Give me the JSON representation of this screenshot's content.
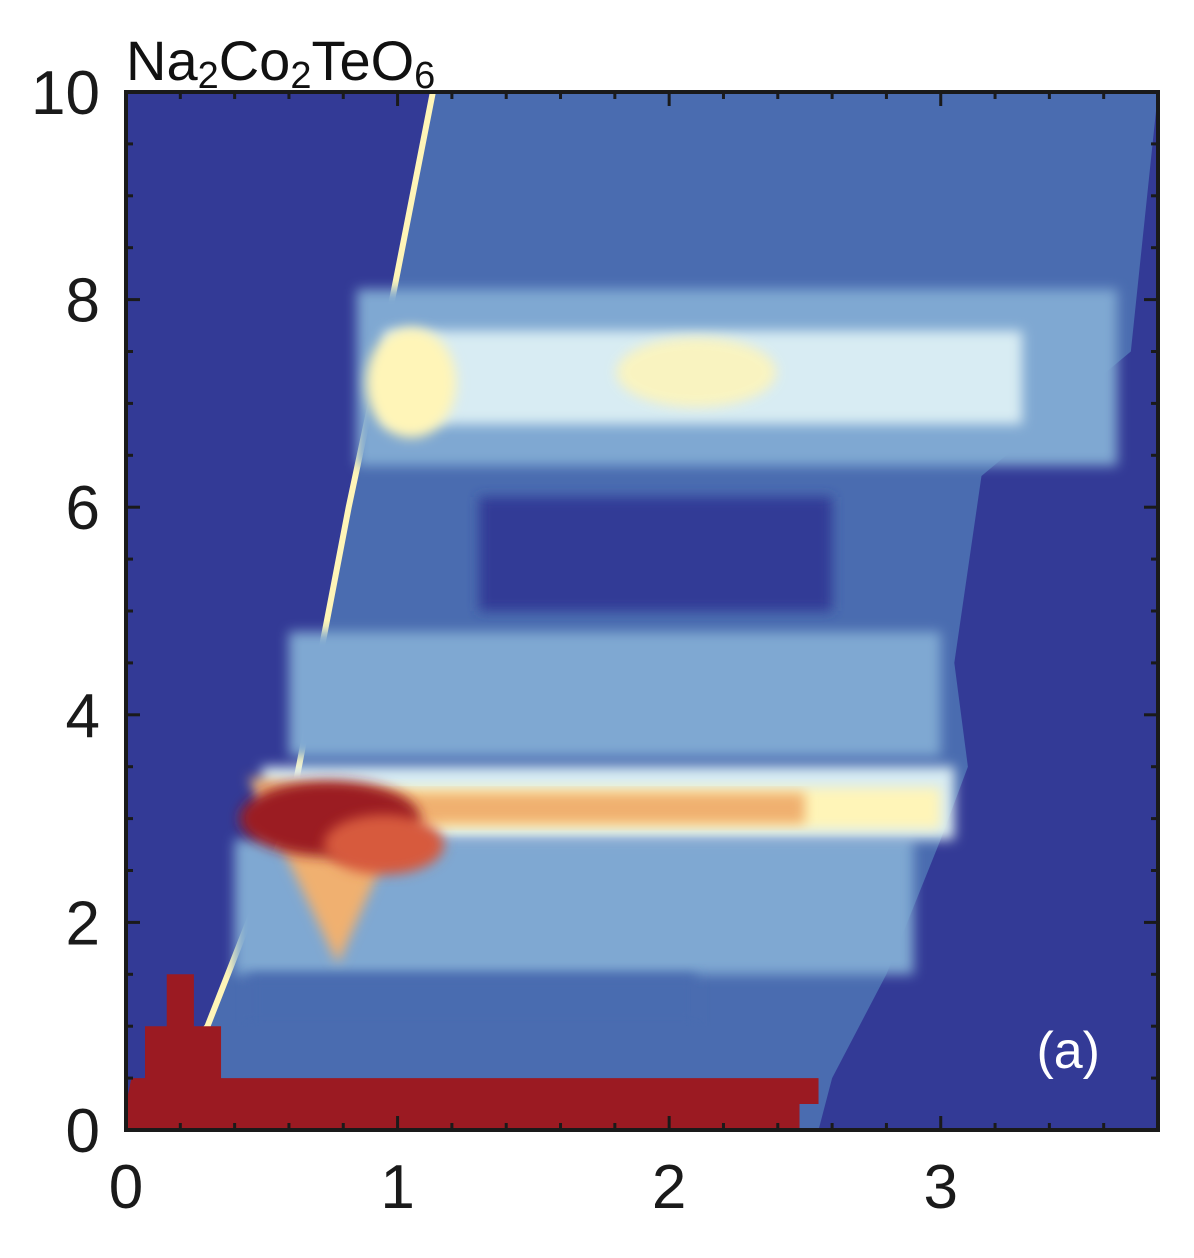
{
  "chart_data": {
    "type": "heatmap",
    "title": {
      "parts": [
        {
          "text": "Na",
          "sub": false
        },
        {
          "text": "2",
          "sub": true
        },
        {
          "text": "Co",
          "sub": false
        },
        {
          "text": "2",
          "sub": true
        },
        {
          "text": "TeO",
          "sub": false
        },
        {
          "text": "6",
          "sub": true
        }
      ]
    },
    "panel_label": "(a)",
    "xlabel": "",
    "ylabel": "",
    "xlim": [
      0,
      3.8
    ],
    "ylim": [
      0,
      10
    ],
    "x_ticks": [
      0,
      1,
      2,
      3
    ],
    "x_tick_labels": [
      "0",
      "1",
      "2",
      "3"
    ],
    "y_ticks": [
      0,
      2,
      4,
      6,
      8,
      10
    ],
    "y_tick_labels": [
      "0",
      "2",
      "4",
      "6",
      "8",
      "10"
    ],
    "minor_tick_step_x": 0.2,
    "minor_tick_step_y": 0.5,
    "grid": false,
    "colormap": [
      "#333a96",
      "#4a6cb0",
      "#7fa8d2",
      "#d8ecf3",
      "#fff5b8",
      "#f0b070",
      "#d75a3c",
      "#9b1a22"
    ],
    "background_color": "#333a96",
    "coverage": {
      "lower_edge_q": [
        [
          0.0,
          0.0
        ],
        [
          0.3,
          1.0
        ],
        [
          0.6,
          3.0
        ],
        [
          0.82,
          6.0
        ],
        [
          0.95,
          7.6
        ],
        [
          1.13,
          10.0
        ]
      ],
      "upper_edge_q": [
        [
          2.55,
          0.0
        ],
        [
          2.6,
          0.5
        ],
        [
          2.8,
          1.5
        ],
        [
          3.0,
          2.8
        ],
        [
          3.1,
          3.5
        ],
        [
          3.05,
          4.5
        ],
        [
          3.15,
          6.3
        ],
        [
          3.7,
          7.5
        ],
        [
          3.8,
          10.0
        ]
      ]
    },
    "features": [
      {
        "name": "elastic-line",
        "energy": 0.3,
        "q_range": [
          0.0,
          2.55
        ],
        "intensity": 1.0
      },
      {
        "name": "lower-band-3meV",
        "energy": 3.0,
        "q_range": [
          0.45,
          3.1
        ],
        "intensity": 0.9
      },
      {
        "name": "v-dispersion",
        "energy": 2.2,
        "q_center": 0.75,
        "intensity": 0.85
      },
      {
        "name": "band-4meV",
        "energy": 4.2,
        "q_range": [
          0.6,
          3.0
        ],
        "intensity": 0.35
      },
      {
        "name": "upper-band-7meV",
        "energy": 7.2,
        "q_range": [
          0.8,
          3.7
        ],
        "intensity": 0.6
      },
      {
        "name": "hot-spot-7meV",
        "energy": 7.3,
        "q_center": 1.1,
        "intensity": 0.7
      },
      {
        "name": "hot-spot-7meV-b",
        "energy": 7.3,
        "q_center": 2.1,
        "intensity": 0.6
      }
    ]
  }
}
